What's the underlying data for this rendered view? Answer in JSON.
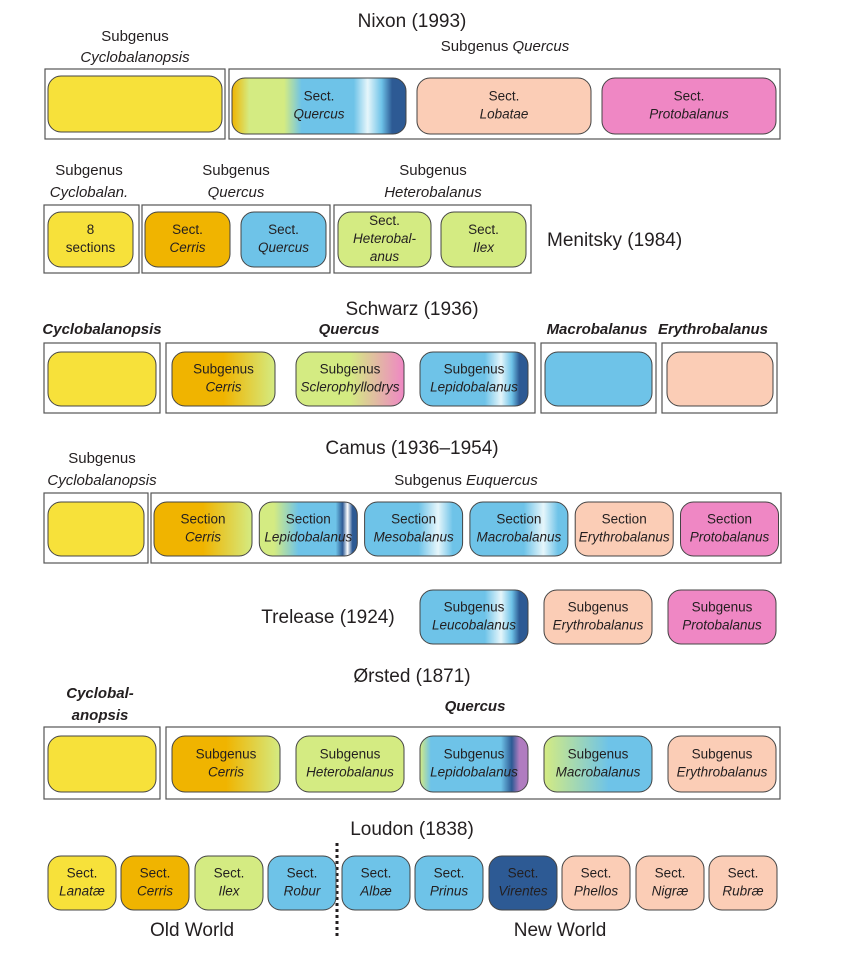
{
  "nixon": {
    "title": "Nixon (1993)",
    "groups": [
      [
        "Subgenus",
        "Cyclobalanopsis"
      ],
      [
        "Subgenus",
        "Quercus"
      ]
    ],
    "boxes": [
      [
        "Sect.",
        "Quercus"
      ],
      [
        "Sect.",
        "Lobatae"
      ],
      [
        "Sect.",
        "Protobalanus"
      ]
    ]
  },
  "menitsky": {
    "title": "Menitsky (1984)",
    "groups": [
      [
        "Subgenus",
        "Cyclobalan."
      ],
      [
        "Subgenus",
        "Quercus"
      ],
      [
        "Subgenus",
        "Heterobalanus"
      ]
    ],
    "boxes": [
      [
        "8",
        "sections"
      ],
      [
        "Sect.",
        "Cerris"
      ],
      [
        "Sect.",
        "Quercus"
      ],
      [
        "Sect.",
        "Heterobal-",
        "anus"
      ],
      [
        "Sect.",
        "Ilex"
      ]
    ]
  },
  "schwarz": {
    "title": "Schwarz (1936)",
    "groups": [
      "Cyclobalanopsis",
      "Quercus",
      "Macrobalanus",
      "Erythrobalanus"
    ],
    "boxes": [
      [
        "Subgenus",
        "Cerris"
      ],
      [
        "Subgenus",
        "Sclerophyllodrys"
      ],
      [
        "Subgenus",
        "Lepidobalanus"
      ]
    ]
  },
  "camus": {
    "title": "Camus (1936–1954)",
    "groups": [
      [
        "Subgenus",
        "Cyclobalanopsis"
      ],
      [
        "Subgenus",
        "Euquercus"
      ]
    ],
    "boxes": [
      [
        "Section",
        "Cerris"
      ],
      [
        "Section",
        "Lepidobalanus"
      ],
      [
        "Section",
        "Mesobalanus"
      ],
      [
        "Section",
        "Macrobalanus"
      ],
      [
        "Section",
        "Erythrobalanus"
      ],
      [
        "Section",
        "Protobalanus"
      ]
    ]
  },
  "trelease": {
    "title": "Trelease (1924)",
    "boxes": [
      [
        "Subgenus",
        "Leucobalanus"
      ],
      [
        "Subgenus",
        "Erythrobalanus"
      ],
      [
        "Subgenus",
        "Protobalanus"
      ]
    ]
  },
  "orsted": {
    "title": "Ørsted (1871)",
    "groups": [
      [
        "Cyclobal-",
        "anopsis"
      ],
      [
        "Quercus"
      ]
    ],
    "boxes": [
      [
        "Subgenus",
        "Cerris"
      ],
      [
        "Subgenus",
        "Heterobalanus"
      ],
      [
        "Subgenus",
        "Lepidobalanus"
      ],
      [
        "Subgenus",
        "Macrobalanus"
      ],
      [
        "Subgenus",
        "Erythrobalanus"
      ]
    ]
  },
  "loudon": {
    "title": "Loudon (1838)",
    "boxes": [
      [
        "Sect.",
        "Lanatæ"
      ],
      [
        "Sect.",
        "Cerris"
      ],
      [
        "Sect.",
        "Ilex"
      ],
      [
        "Sect.",
        "Robur"
      ],
      [
        "Sect.",
        "Albæ"
      ],
      [
        "Sect.",
        "Prinus"
      ],
      [
        "Sect.",
        "Virentes"
      ],
      [
        "Sect.",
        "Phellos"
      ],
      [
        "Sect.",
        "Nigræ"
      ],
      [
        "Sect.",
        "Rubræ"
      ]
    ],
    "regions": [
      "Old World",
      "New World"
    ]
  }
}
